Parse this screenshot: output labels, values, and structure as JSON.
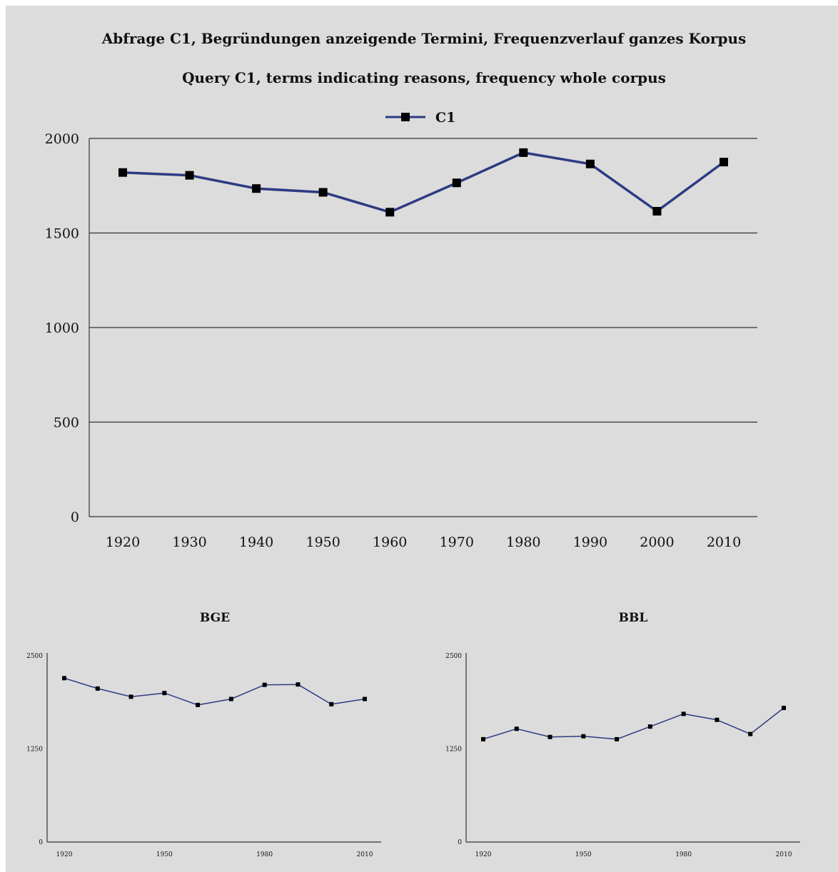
{
  "colors": {
    "background": "#dcdcdc",
    "series": "#2e3a82",
    "marker": "#000000",
    "grid": "#333333"
  },
  "chart_data": [
    {
      "type": "line",
      "title": "Abfrage C1, Begründungen anzeigende Termini, Frequenzverlauf ganzes Korpus",
      "subtitle": "Query C1, terms indicating reasons, frequency whole corpus",
      "legend_position": "top-center",
      "grid": true,
      "x": [
        1920,
        1930,
        1940,
        1950,
        1960,
        1970,
        1980,
        1990,
        2000,
        2010
      ],
      "xticks": [
        "1920",
        "1930",
        "1940",
        "1950",
        "1960",
        "1970",
        "1980",
        "1990",
        "2000",
        "2010"
      ],
      "ylim": [
        0,
        2000
      ],
      "yticks": [
        "0",
        "500",
        "1000",
        "1500",
        "2000"
      ],
      "series": [
        {
          "name": "C1",
          "values": [
            1820,
            1805,
            1735,
            1715,
            1610,
            1765,
            1925,
            1865,
            1615,
            1875
          ]
        }
      ]
    },
    {
      "type": "line",
      "title": "BGE",
      "grid": false,
      "x": [
        1920,
        1930,
        1940,
        1950,
        1960,
        1970,
        1980,
        1990,
        2000,
        2010
      ],
      "xticks": [
        "1920",
        "1950",
        "1980",
        "2010"
      ],
      "ylim": [
        0,
        2500
      ],
      "yticks": [
        "0",
        "1250",
        "2500"
      ],
      "series": [
        {
          "values": [
            2200,
            2060,
            1950,
            2000,
            1840,
            1920,
            2110,
            2115,
            1850,
            1920
          ]
        }
      ]
    },
    {
      "type": "line",
      "title": "BBL",
      "grid": false,
      "x": [
        1920,
        1930,
        1940,
        1950,
        1960,
        1970,
        1980,
        1990,
        2000,
        2010
      ],
      "xticks": [
        "1920",
        "1950",
        "1980",
        "2010"
      ],
      "ylim": [
        0,
        2500
      ],
      "yticks": [
        "0",
        "1250",
        "2500"
      ],
      "series": [
        {
          "values": [
            1380,
            1520,
            1410,
            1420,
            1380,
            1550,
            1720,
            1640,
            1450,
            1800
          ]
        }
      ]
    }
  ]
}
